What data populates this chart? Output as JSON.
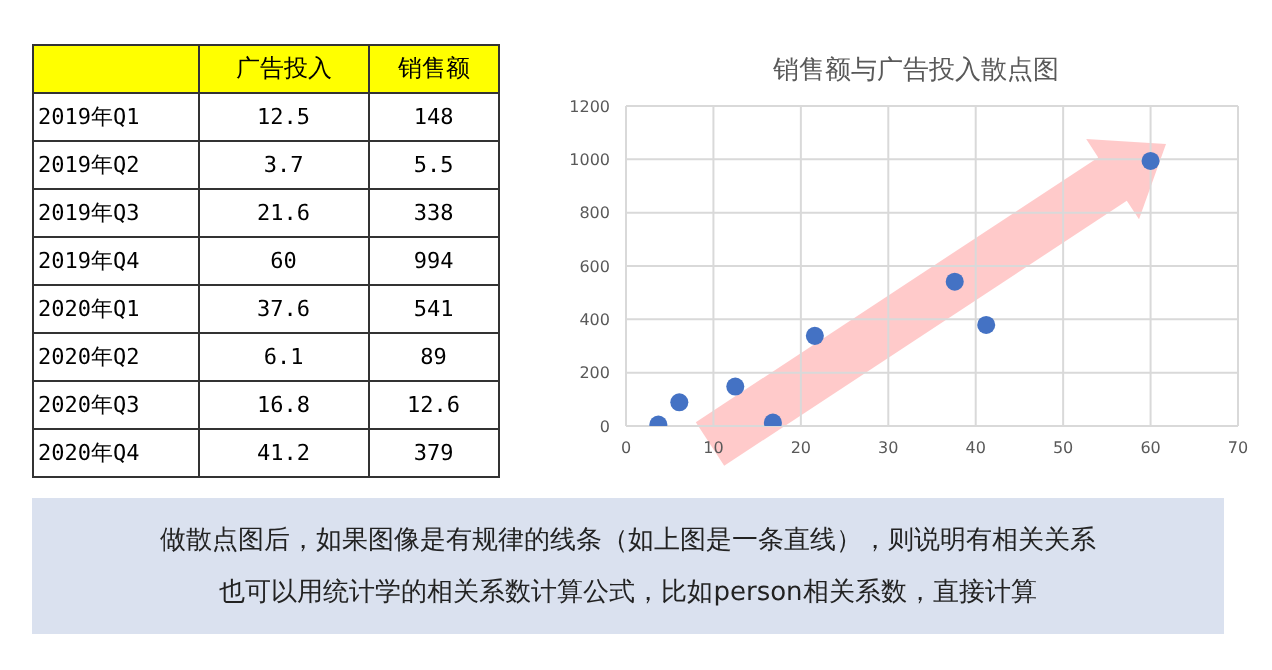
{
  "chart_data": [
    {
      "type": "other",
      "categories": [
        "2019年Q1",
        "2019年Q2",
        "2019年Q3",
        "2019年Q4",
        "2020年Q1",
        "2020年Q2",
        "2020年Q3",
        "2020年Q4"
      ],
      "series": [
        {
          "name": "广告投入",
          "values": [
            12.5,
            3.7,
            21.6,
            60,
            37.6,
            6.1,
            16.8,
            41.2
          ]
        },
        {
          "name": "销售额",
          "values": [
            148,
            5.5,
            338,
            994,
            541,
            89,
            12.6,
            379
          ]
        }
      ],
      "data_labels": true
    },
    {
      "type": "scatter",
      "title": "销售额与广告投入散点图",
      "x": [
        12.5,
        3.7,
        21.6,
        60,
        37.6,
        6.1,
        16.8,
        41.2
      ],
      "series": [
        {
          "color": "#4472c4",
          "values": [
            148,
            5.5,
            338,
            994,
            541,
            89,
            12.6,
            379
          ]
        }
      ],
      "xlim": [
        0,
        70
      ],
      "xticks": [
        0,
        10,
        20,
        30,
        40,
        50,
        60,
        70
      ],
      "ylim": [
        0,
        1200
      ],
      "yticks": [
        0,
        200,
        400,
        600,
        800,
        1000,
        1200
      ],
      "grid": true,
      "marker": "circle",
      "annotations": [
        "做散点图后，如果图像是有规律的线条（如上图是一条直线），则说明有相关关系",
        "也可以用统计学的相关系数计算公式，比如person相关系数，直接计算"
      ]
    }
  ]
}
